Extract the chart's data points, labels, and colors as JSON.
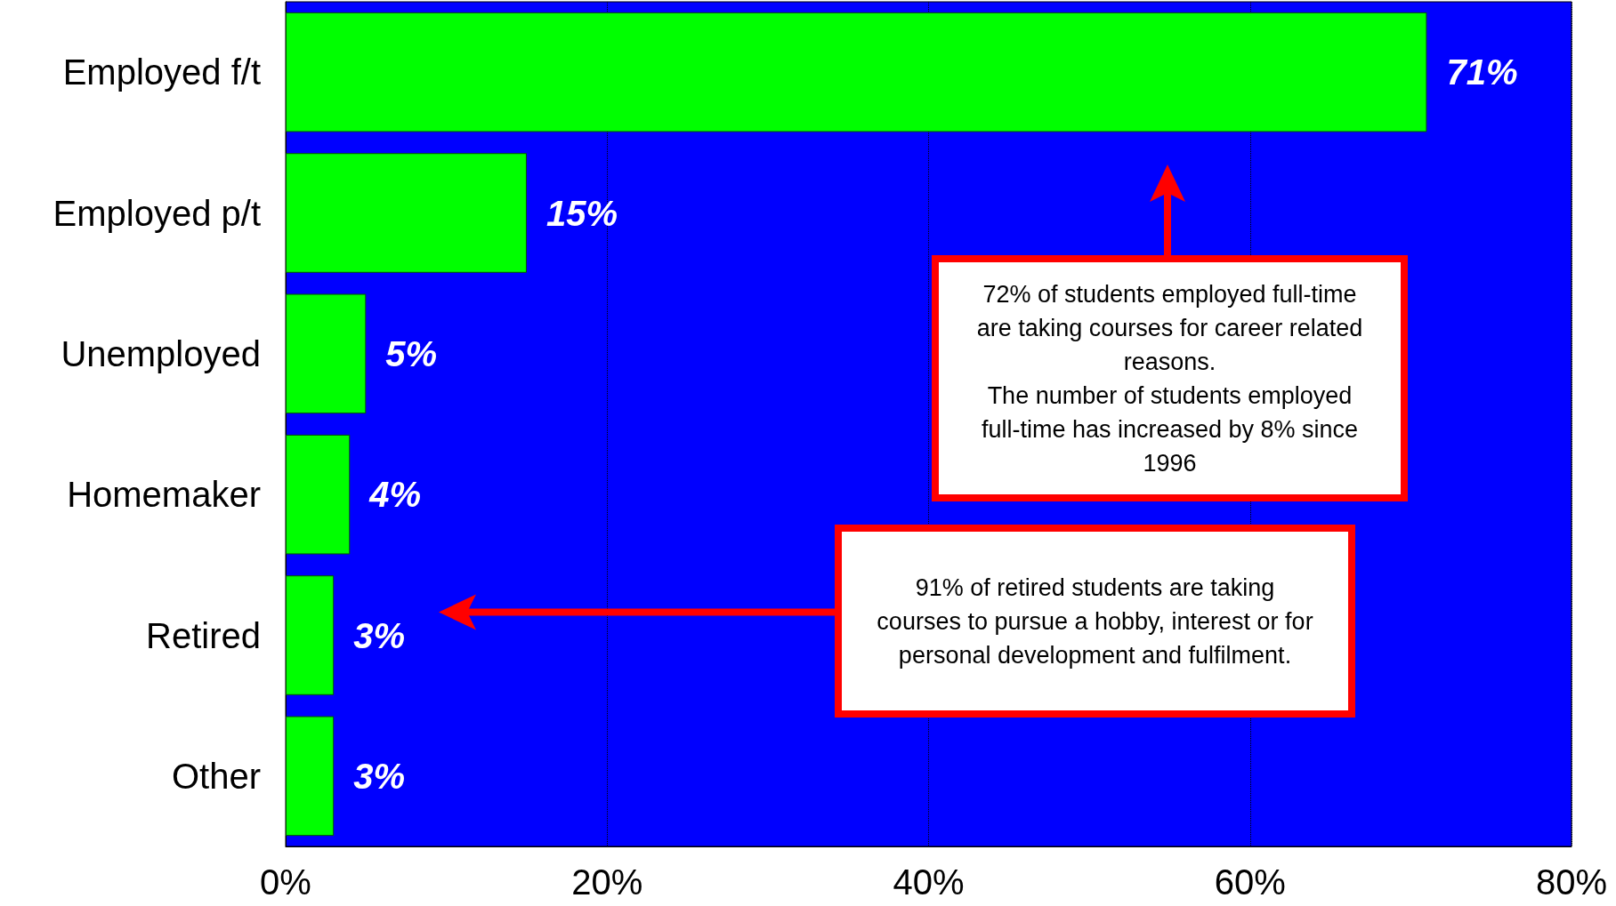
{
  "chart_data": {
    "type": "bar",
    "orientation": "horizontal",
    "categories": [
      "Employed f/t",
      "Employed p/t",
      "Unemployed",
      "Homemaker",
      "Retired",
      "Other"
    ],
    "values": [
      71,
      15,
      5,
      4,
      3,
      3
    ],
    "value_labels": [
      "71%",
      "15%",
      "5%",
      "4%",
      "3%",
      "3%"
    ],
    "color": "#00ff00",
    "xlim": [
      0,
      80
    ],
    "xticks": [
      {
        "value": 0,
        "label": "0%"
      },
      {
        "value": 20,
        "label": "20%"
      },
      {
        "value": 40,
        "label": "40%"
      },
      {
        "value": 60,
        "label": "60%"
      },
      {
        "value": 80,
        "label": "80%"
      }
    ],
    "grid": "x",
    "annotations": [
      "72% of students employed full-time are taking courses for career related reasons.\nThe number of students employed full-time has increased by 8% since 1996",
      "91% of retired students are taking courses to pursue a hobby, interest or for personal development and fulfilment."
    ]
  }
}
